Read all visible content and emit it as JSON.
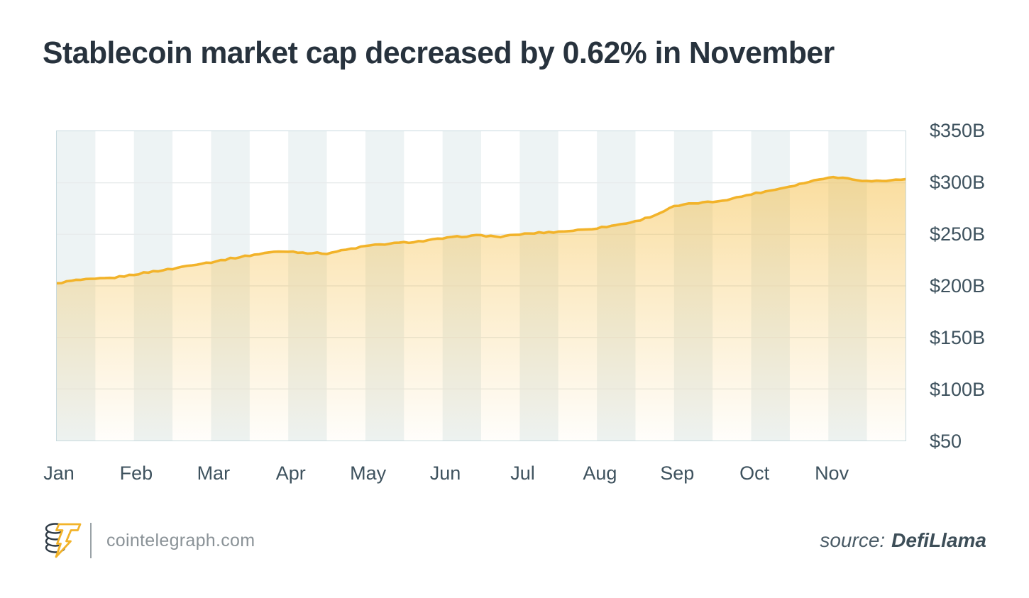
{
  "title": "Stablecoin market cap decreased by 0.62% in November",
  "footer": {
    "site": "cointelegraph.com",
    "source_label": "source:",
    "source_value": "DefiLlama",
    "logo": "cointelegraph-coin-bolt-logo"
  },
  "colors": {
    "line": "#F2B32A",
    "area_fill_base": "#F4B731",
    "band": "#EDF3F4",
    "plot_border": "#C7D9DE",
    "gridline": "#E8EBEC",
    "title_text": "#27323D",
    "axis_text": "#3E525E",
    "footer_text": "#8A9297",
    "source_text": "#3D4E58",
    "logo_dark": "#2E3A45",
    "logo_yellow": "#F2B32A"
  },
  "chart_data": {
    "type": "area",
    "title": "Stablecoin market cap decreased by 0.62% in November",
    "series_name": "Stablecoin market cap",
    "unit": "USD billions",
    "x_labels": [
      "Jan",
      "Feb",
      "Mar",
      "Apr",
      "May",
      "Jun",
      "Jul",
      "Aug",
      "Sep",
      "Oct",
      "Nov"
    ],
    "points_per_month": 4,
    "values": [
      202.5,
      205.5,
      206.5,
      208,
      211,
      214,
      216.5,
      220.5,
      223,
      226.5,
      229.5,
      232.5,
      233.5,
      232,
      231.5,
      235,
      238.5,
      240.5,
      242,
      243.5,
      246,
      248,
      249,
      247.5,
      250,
      251.5,
      252.5,
      254,
      256,
      259,
      262.5,
      268.5,
      277,
      280,
      281.5,
      284.5,
      289,
      292.5,
      296.5,
      301,
      305.5,
      304.5,
      301.5,
      302,
      303.5
    ],
    "november_open": 305.5,
    "november_close": 303.6,
    "november_change_pct": -0.62,
    "y_ticks": [
      {
        "label": "$350B",
        "value": 350
      },
      {
        "label": "$300B",
        "value": 300
      },
      {
        "label": "$250B",
        "value": 250
      },
      {
        "label": "$200B",
        "value": 200
      },
      {
        "label": "$150B",
        "value": 150
      },
      {
        "label": "$100B",
        "value": 100
      },
      {
        "label": "$50",
        "value": 50
      }
    ],
    "ylim": [
      50,
      350
    ],
    "grid": "horizontal",
    "legend": "none",
    "y_axis_side": "right",
    "background_bands": 22
  }
}
